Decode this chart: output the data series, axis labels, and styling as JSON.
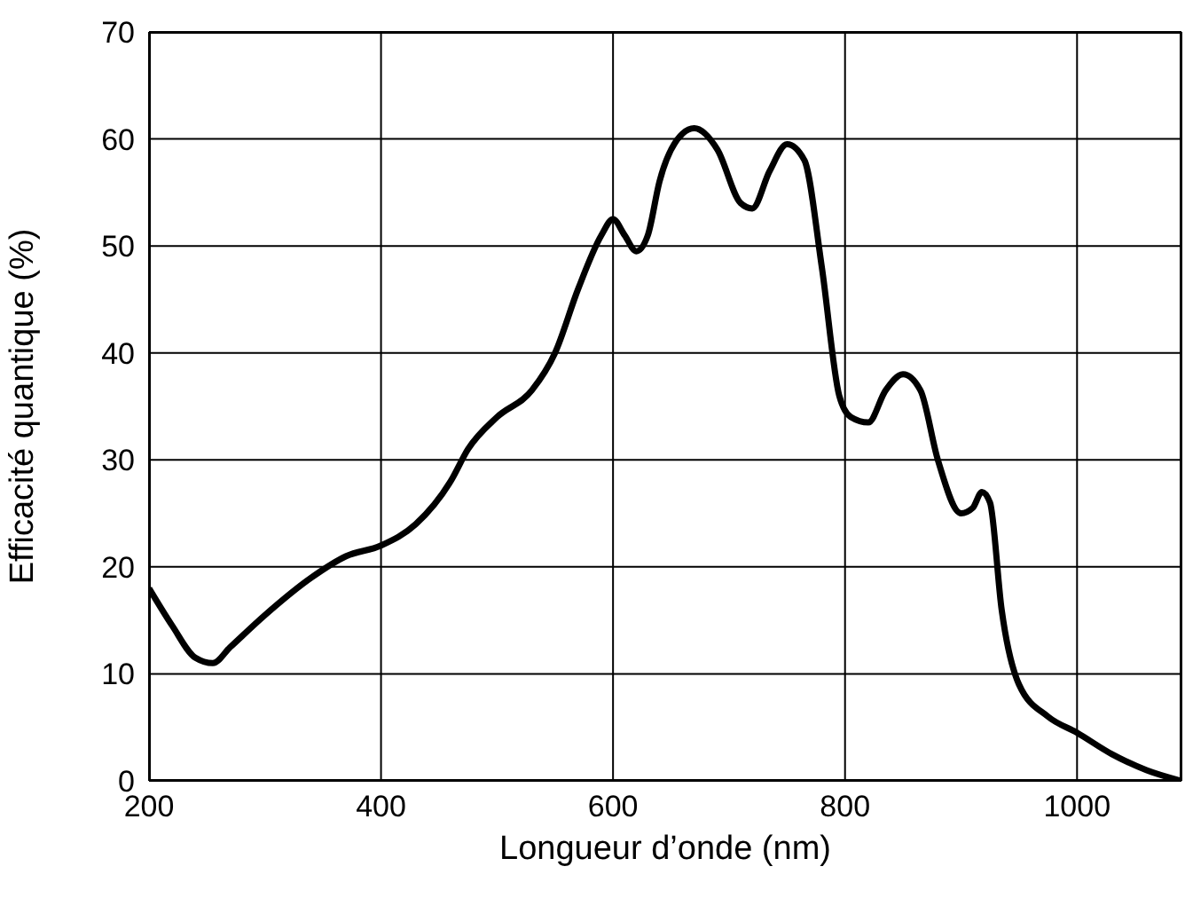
{
  "chart_data": {
    "type": "line",
    "xlabel": "Longueur d’onde (nm)",
    "ylabel": "Efficacité quantique (%)",
    "color": "#000000",
    "grid": true,
    "xlim": [
      200,
      1090
    ],
    "xticks": [
      200,
      400,
      600,
      800,
      1000
    ],
    "ylim": [
      0,
      70
    ],
    "yticks": [
      0,
      10,
      20,
      30,
      40,
      50,
      60,
      70
    ],
    "x": [
      200,
      220,
      240,
      255,
      270,
      300,
      340,
      370,
      400,
      430,
      460,
      475,
      500,
      530,
      550,
      570,
      590,
      600,
      610,
      620,
      630,
      640,
      660,
      670,
      690,
      710,
      720,
      735,
      750,
      765,
      780,
      795,
      805,
      820,
      835,
      850,
      865,
      880,
      900,
      910,
      918,
      925,
      935,
      950,
      975,
      1000,
      1030,
      1060,
      1090
    ],
    "values": [
      18,
      14.5,
      11.5,
      11,
      12.5,
      15.5,
      19,
      21,
      22,
      24,
      28,
      31,
      34,
      36.5,
      40,
      46,
      51,
      52.5,
      51,
      49.5,
      51,
      56,
      60.5,
      61,
      59,
      54,
      53.5,
      57,
      59.5,
      58,
      48,
      36,
      34,
      33.5,
      36.5,
      38,
      36.5,
      30,
      25,
      25.5,
      27,
      26,
      16,
      9,
      6,
      4.5,
      2.5,
      1,
      0
    ]
  }
}
